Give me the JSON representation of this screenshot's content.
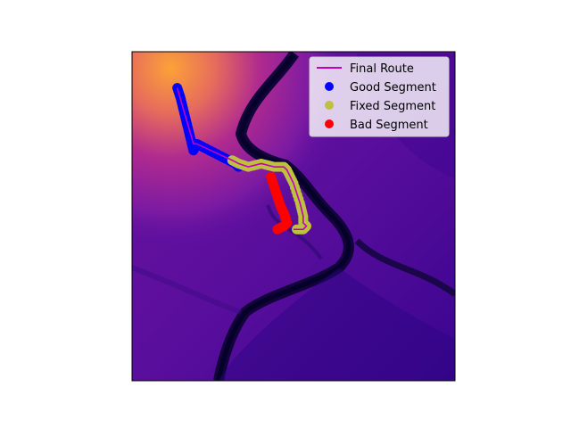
{
  "chart_data": {
    "type": "scatter",
    "title": "",
    "xlabel": "",
    "ylabel": "",
    "axes_ticks": false,
    "background": "terrain-heatmap (plasma colormap)",
    "xlim": [
      0,
      100
    ],
    "ylim": [
      100,
      0
    ],
    "legend_position": "top-right",
    "legend": [
      {
        "label": "Final Route",
        "kind": "line",
        "color": "#c000c0"
      },
      {
        "label": "Good Segment",
        "kind": "point",
        "color": "#0000ff"
      },
      {
        "label": "Fixed Segment",
        "kind": "point",
        "color": "#bfbf40"
      },
      {
        "label": "Bad Segment",
        "kind": "point",
        "color": "#ff0000"
      }
    ],
    "series": [
      {
        "name": "Good Segment",
        "color": "#0000ff",
        "x": [
          14,
          15,
          16,
          17,
          18,
          19,
          20,
          22,
          24,
          26,
          28,
          30,
          32,
          33
        ],
        "y": [
          11,
          14,
          18,
          22,
          26,
          30,
          28,
          29,
          30,
          31,
          32,
          33,
          34,
          35
        ]
      },
      {
        "name": "Fixed Segment",
        "color": "#bfbf40",
        "x": [
          31,
          33,
          36,
          40,
          44,
          47,
          48,
          50,
          52,
          53,
          53,
          54,
          53,
          51
        ],
        "y": [
          33,
          34,
          35,
          34,
          35,
          35,
          36,
          40,
          46,
          50,
          52,
          53,
          54,
          54
        ]
      },
      {
        "name": "Bad Segment",
        "color": "#ff0000",
        "x": [
          43,
          44,
          45,
          46,
          47,
          48,
          47,
          45
        ],
        "y": [
          38,
          41,
          44,
          47,
          49,
          52,
          53,
          54
        ]
      }
    ],
    "final_route": {
      "name": "Final Route",
      "color": "#c000c0",
      "x": [
        14,
        19,
        20,
        31,
        33,
        36,
        40,
        44,
        47,
        48,
        50,
        52,
        53,
        53,
        54,
        53,
        50
      ],
      "y": [
        11,
        28,
        28,
        33,
        34,
        35,
        34,
        35,
        35,
        36,
        40,
        46,
        50,
        52,
        53,
        54,
        54
      ]
    }
  }
}
